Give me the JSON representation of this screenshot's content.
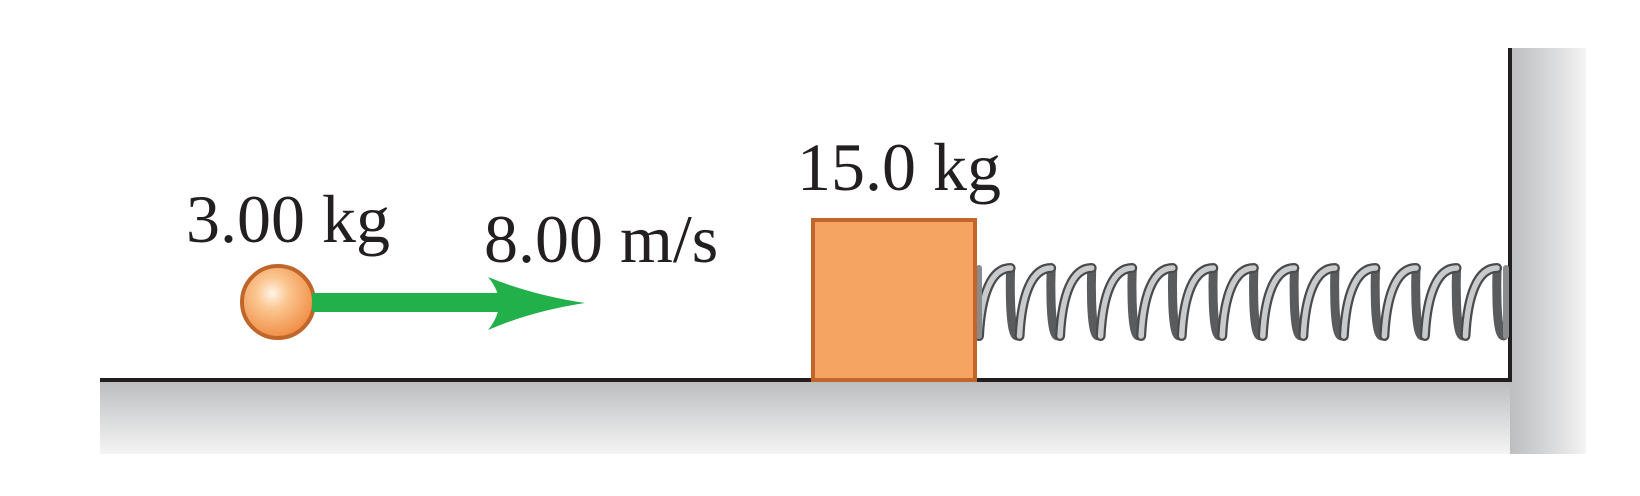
{
  "ball": {
    "mass_label": "3.00 kg",
    "color": "#f6a462",
    "outline": "#c0662a"
  },
  "velocity": {
    "label": "8.00 m/s",
    "color": "#22b04b"
  },
  "block": {
    "mass_label": "15.0 kg",
    "color": "#f6a462",
    "outline": "#c0662a"
  },
  "spring": {
    "coils": 13
  },
  "surface": {
    "line_color": "#231f20"
  }
}
